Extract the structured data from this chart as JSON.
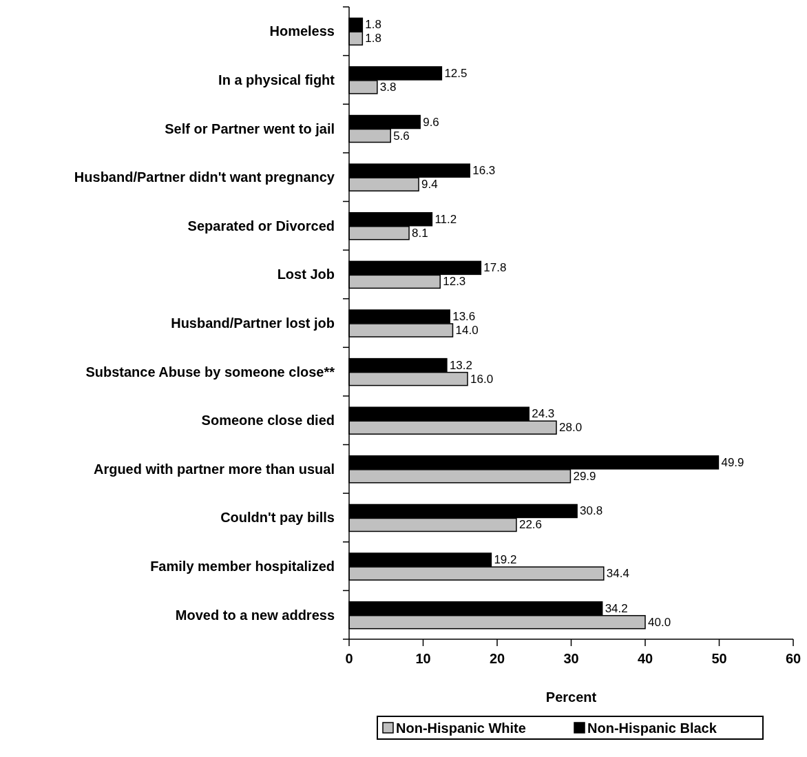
{
  "chart_data": {
    "type": "bar",
    "orientation": "horizontal",
    "xlabel": "Percent",
    "categories": [
      "Homeless",
      "In a physical fight",
      "Self or Partner went to jail",
      "Husband/Partner didn't want pregnancy",
      "Separated or Divorced",
      "Lost Job",
      "Husband/Partner lost job",
      "Substance Abuse by someone close**",
      "Someone close died",
      "Argued with partner more than usual",
      "Couldn't pay bills",
      "Family member hospitalized",
      "Moved to a new address"
    ],
    "series": [
      {
        "name": "Non-Hispanic White",
        "color": "#c0c0c0",
        "values": [
          1.8,
          3.8,
          5.6,
          9.4,
          8.1,
          12.3,
          14.0,
          16.0,
          28.0,
          29.9,
          22.6,
          34.4,
          40.0
        ],
        "value_labels": [
          "1.8",
          "3.8",
          "5.6",
          "9.4",
          "8.1",
          "12.3",
          "14.0",
          "16.0",
          "28.0",
          "29.9",
          "22.6",
          "34.4",
          "40.0"
        ]
      },
      {
        "name": "Non-Hispanic Black",
        "color": "#000000",
        "values": [
          1.8,
          12.5,
          9.6,
          16.3,
          11.2,
          17.8,
          13.6,
          13.2,
          24.3,
          49.9,
          30.8,
          19.2,
          34.2
        ],
        "value_labels": [
          "1.8",
          "12.5",
          "9.6",
          "16.3",
          "11.2",
          "17.8",
          "13.6",
          "13.2",
          "24.3",
          "49.9",
          "30.8",
          "19.2",
          "34.2"
        ]
      }
    ],
    "xlim": [
      0,
      60
    ],
    "xticks": [
      0,
      10,
      20,
      30,
      40,
      50,
      60
    ],
    "grid": false,
    "legend": "bottom"
  }
}
